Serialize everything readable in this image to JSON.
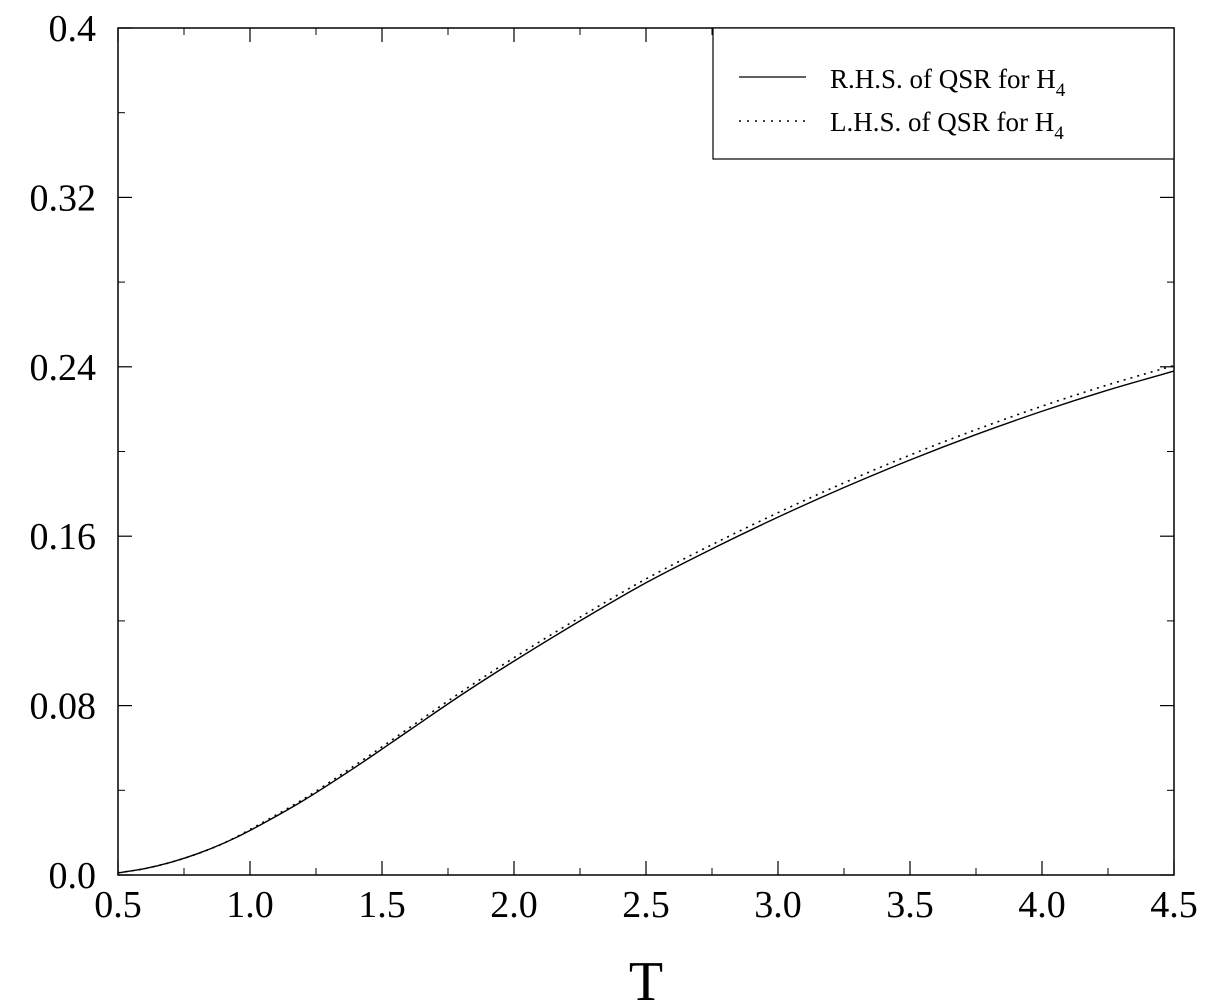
{
  "chart_data": {
    "type": "line",
    "title": "",
    "xlabel": "T",
    "ylabel": "",
    "xlim": [
      0.5,
      4.5
    ],
    "ylim": [
      0.0,
      0.4
    ],
    "x_ticks": [
      0.5,
      1.0,
      1.5,
      2.0,
      2.5,
      3.0,
      3.5,
      4.0,
      4.5
    ],
    "x_tick_labels": [
      "0.5",
      "1.0",
      "1.5",
      "2.0",
      "2.5",
      "3.0",
      "3.5",
      "4.0",
      "4.5"
    ],
    "y_ticks": [
      0.0,
      0.08,
      0.16,
      0.24,
      0.32,
      0.4
    ],
    "y_tick_labels": [
      "0.0",
      "0.08",
      "0.16",
      "0.24",
      "0.32",
      "0.4"
    ],
    "grid": false,
    "legend_position": "top-right",
    "series": [
      {
        "name": "R.H.S. of QSR for H",
        "name_subscript": "4",
        "style": "solid",
        "color": "#000000",
        "x": [
          0.5,
          0.6,
          0.7,
          0.8,
          0.9,
          1.0,
          1.2,
          1.4,
          1.6,
          1.8,
          2.0,
          2.25,
          2.5,
          2.75,
          3.0,
          3.25,
          3.5,
          3.75,
          4.0,
          4.25,
          4.5
        ],
        "y": [
          0.001,
          0.003,
          0.006,
          0.01,
          0.015,
          0.021,
          0.035,
          0.051,
          0.068,
          0.085,
          0.101,
          0.12,
          0.138,
          0.154,
          0.169,
          0.183,
          0.196,
          0.208,
          0.219,
          0.229,
          0.238
        ]
      },
      {
        "name": "L.H.S. of QSR for H",
        "name_subscript": "4",
        "style": "dotted",
        "color": "#000000",
        "x": [
          0.5,
          0.6,
          0.7,
          0.8,
          0.9,
          1.0,
          1.2,
          1.4,
          1.6,
          1.8,
          2.0,
          2.25,
          2.5,
          2.75,
          3.0,
          3.25,
          3.5,
          3.75,
          4.0,
          4.25,
          4.5
        ],
        "y": [
          0.001,
          0.003,
          0.006,
          0.01,
          0.015,
          0.0215,
          0.0357,
          0.052,
          0.0692,
          0.0864,
          0.1026,
          0.1217,
          0.1398,
          0.156,
          0.1711,
          0.1852,
          0.1983,
          0.2103,
          0.2214,
          0.2315,
          0.2406
        ]
      }
    ]
  }
}
